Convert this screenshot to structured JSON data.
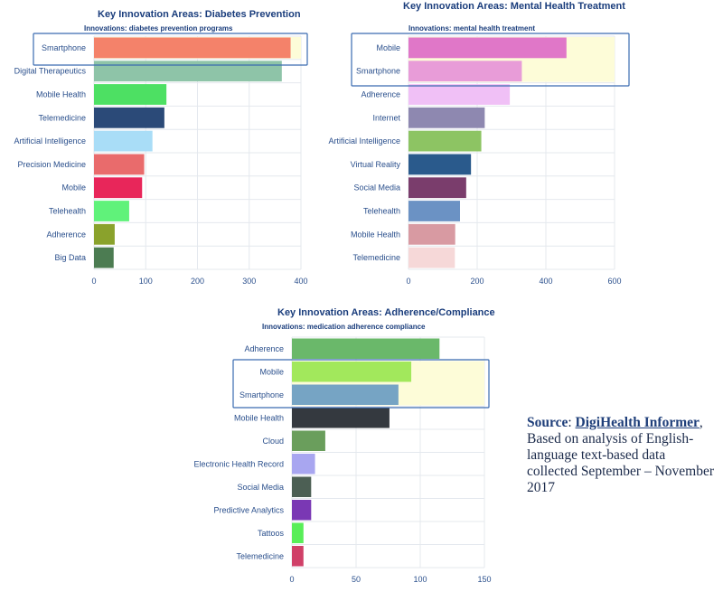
{
  "chart_data": [
    {
      "type": "bar",
      "orientation": "horizontal",
      "title": "Key Innovation Areas: Diabetes Prevention",
      "subtitle": "Innovations: diabetes prevention programs",
      "categories": [
        "Smartphone",
        "Digital Therapeutics",
        "Mobile Health",
        "Telemedicine",
        "Artificial Intelligence",
        "Precision Medicine ",
        "Mobile",
        "Telehealth",
        "Adherence",
        "Big Data"
      ],
      "values": [
        380,
        363,
        140,
        136,
        113,
        97,
        93,
        68,
        40,
        38
      ],
      "colors": [
        "#f4826a",
        "#8ec4a8",
        "#4de063",
        "#2b4a78",
        "#a9ddf7",
        "#e96b6c",
        "#e8265a",
        "#60f27a",
        "#8aa22c",
        "#4c7c52"
      ],
      "xticks": [
        0,
        100,
        200,
        300,
        400
      ],
      "xlim": [
        0,
        400
      ],
      "highlighted": [
        "Smartphone"
      ],
      "grid": true
    },
    {
      "type": "bar",
      "orientation": "horizontal",
      "title": "Key Innovation Areas: Mental Health Treatment",
      "subtitle": "Innovations: mental health treatment",
      "categories": [
        "Mobile",
        "Smartphone",
        "Adherence",
        "Internet",
        "Artificial Intelligence",
        "Virtual Reality",
        "Social Media",
        "Telehealth",
        "Mobile Health",
        "Telemedicine"
      ],
      "values": [
        460,
        330,
        295,
        222,
        212,
        182,
        168,
        150,
        136,
        135
      ],
      "colors": [
        "#e077c8",
        "#e89cd8",
        "#f0c0f6",
        "#8e88b0",
        "#8dc463",
        "#2a5a8c",
        "#7a3d6c",
        "#6b92c4",
        "#d89aa2",
        "#f6d8d8"
      ],
      "xticks": [
        0,
        200,
        400,
        600
      ],
      "xlim": [
        0,
        600
      ],
      "highlighted": [
        "Mobile",
        "Smartphone"
      ],
      "grid": true
    },
    {
      "type": "bar",
      "orientation": "horizontal",
      "title": "Key Innovation Areas: Adherence/Compliance",
      "subtitle": "Innovations: medication adherence compliance",
      "categories": [
        "Adherence",
        "Mobile",
        "Smartphone",
        "Mobile Health",
        "Cloud",
        "Electronic Health Record",
        "Social Media",
        "Predictive Analytics",
        "Tattoos",
        "Telemedicine"
      ],
      "values": [
        115,
        93,
        83,
        76,
        26,
        18,
        15,
        15,
        9,
        9
      ],
      "colors": [
        "#6ab86a",
        "#a2e85c",
        "#76a4c4",
        "#34393f",
        "#6a9e5c",
        "#a8a6f0",
        "#4c5f54",
        "#7a38b4",
        "#58ee58",
        "#d04068"
      ],
      "xticks": [
        0,
        50,
        100,
        150
      ],
      "xlim": [
        0,
        150
      ],
      "highlighted": [
        "Mobile",
        "Smartphone"
      ],
      "grid": true
    }
  ],
  "source": {
    "label": "Source",
    "sep": ": ",
    "publisher": "DigiHealth Informer",
    "text": ", Based on analysis of English-language text-based data collected September – November 2017"
  }
}
